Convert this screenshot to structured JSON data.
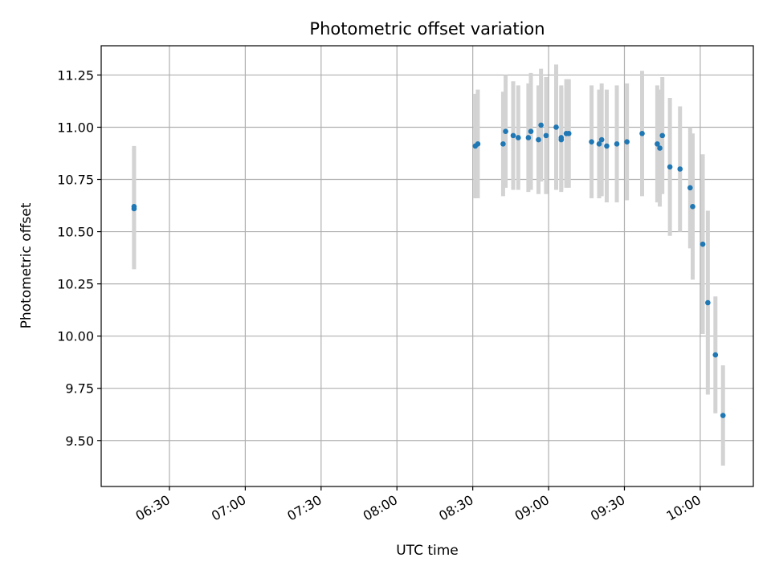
{
  "chart_data": {
    "type": "scatter",
    "title": "Photometric offset variation",
    "xlabel": "UTC time",
    "ylabel": "Photometric offset",
    "x_tick_labels": [
      "06:30",
      "07:00",
      "07:30",
      "08:00",
      "08:30",
      "09:00",
      "09:30",
      "10:00"
    ],
    "y_tick_labels": [
      "9.50",
      "9.75",
      "10.00",
      "10.25",
      "10.50",
      "10.75",
      "11.00",
      "11.25"
    ],
    "xlim": [
      "06:03",
      "10:21"
    ],
    "ylim": [
      9.28,
      11.39
    ],
    "grid": true,
    "colors": {
      "points": "#1f77b4",
      "error_bars": "#d3d3d3",
      "grid": "#b0b0b0"
    },
    "series": [
      {
        "points": [
          {
            "x": "06:16",
            "y": 10.61,
            "err": 0.29
          },
          {
            "x": "06:16",
            "y": 10.62,
            "err": 0.29
          },
          {
            "x": "08:31",
            "y": 10.91,
            "err": 0.25
          },
          {
            "x": "08:32",
            "y": 10.92,
            "err": 0.26
          },
          {
            "x": "08:42",
            "y": 10.92,
            "err": 0.25
          },
          {
            "x": "08:43",
            "y": 10.98,
            "err": 0.27
          },
          {
            "x": "08:46",
            "y": 10.96,
            "err": 0.26
          },
          {
            "x": "08:48",
            "y": 10.95,
            "err": 0.25
          },
          {
            "x": "08:52",
            "y": 10.95,
            "err": 0.26
          },
          {
            "x": "08:53",
            "y": 10.98,
            "err": 0.28
          },
          {
            "x": "08:56",
            "y": 10.94,
            "err": 0.26
          },
          {
            "x": "08:57",
            "y": 11.01,
            "err": 0.27
          },
          {
            "x": "08:59",
            "y": 10.96,
            "err": 0.28
          },
          {
            "x": "09:03",
            "y": 11.0,
            "err": 0.3
          },
          {
            "x": "09:05",
            "y": 10.94,
            "err": 0.25
          },
          {
            "x": "09:05",
            "y": 10.95,
            "err": 0.25
          },
          {
            "x": "09:07",
            "y": 10.97,
            "err": 0.26
          },
          {
            "x": "09:08",
            "y": 10.97,
            "err": 0.26
          },
          {
            "x": "09:17",
            "y": 10.93,
            "err": 0.27
          },
          {
            "x": "09:20",
            "y": 10.92,
            "err": 0.26
          },
          {
            "x": "09:21",
            "y": 10.94,
            "err": 0.27
          },
          {
            "x": "09:23",
            "y": 10.91,
            "err": 0.27
          },
          {
            "x": "09:27",
            "y": 10.92,
            "err": 0.28
          },
          {
            "x": "09:31",
            "y": 10.93,
            "err": 0.28
          },
          {
            "x": "09:37",
            "y": 10.97,
            "err": 0.3
          },
          {
            "x": "09:43",
            "y": 10.92,
            "err": 0.28
          },
          {
            "x": "09:44",
            "y": 10.9,
            "err": 0.28
          },
          {
            "x": "09:45",
            "y": 10.96,
            "err": 0.28
          },
          {
            "x": "09:48",
            "y": 10.81,
            "err": 0.33
          },
          {
            "x": "09:52",
            "y": 10.8,
            "err": 0.3
          },
          {
            "x": "09:56",
            "y": 10.71,
            "err": 0.29
          },
          {
            "x": "09:57",
            "y": 10.62,
            "err": 0.35
          },
          {
            "x": "10:01",
            "y": 10.44,
            "err": 0.43
          },
          {
            "x": "10:03",
            "y": 10.16,
            "err": 0.44
          },
          {
            "x": "10:06",
            "y": 9.91,
            "err": 0.28
          },
          {
            "x": "10:09",
            "y": 9.62,
            "err": 0.24
          }
        ]
      }
    ]
  }
}
